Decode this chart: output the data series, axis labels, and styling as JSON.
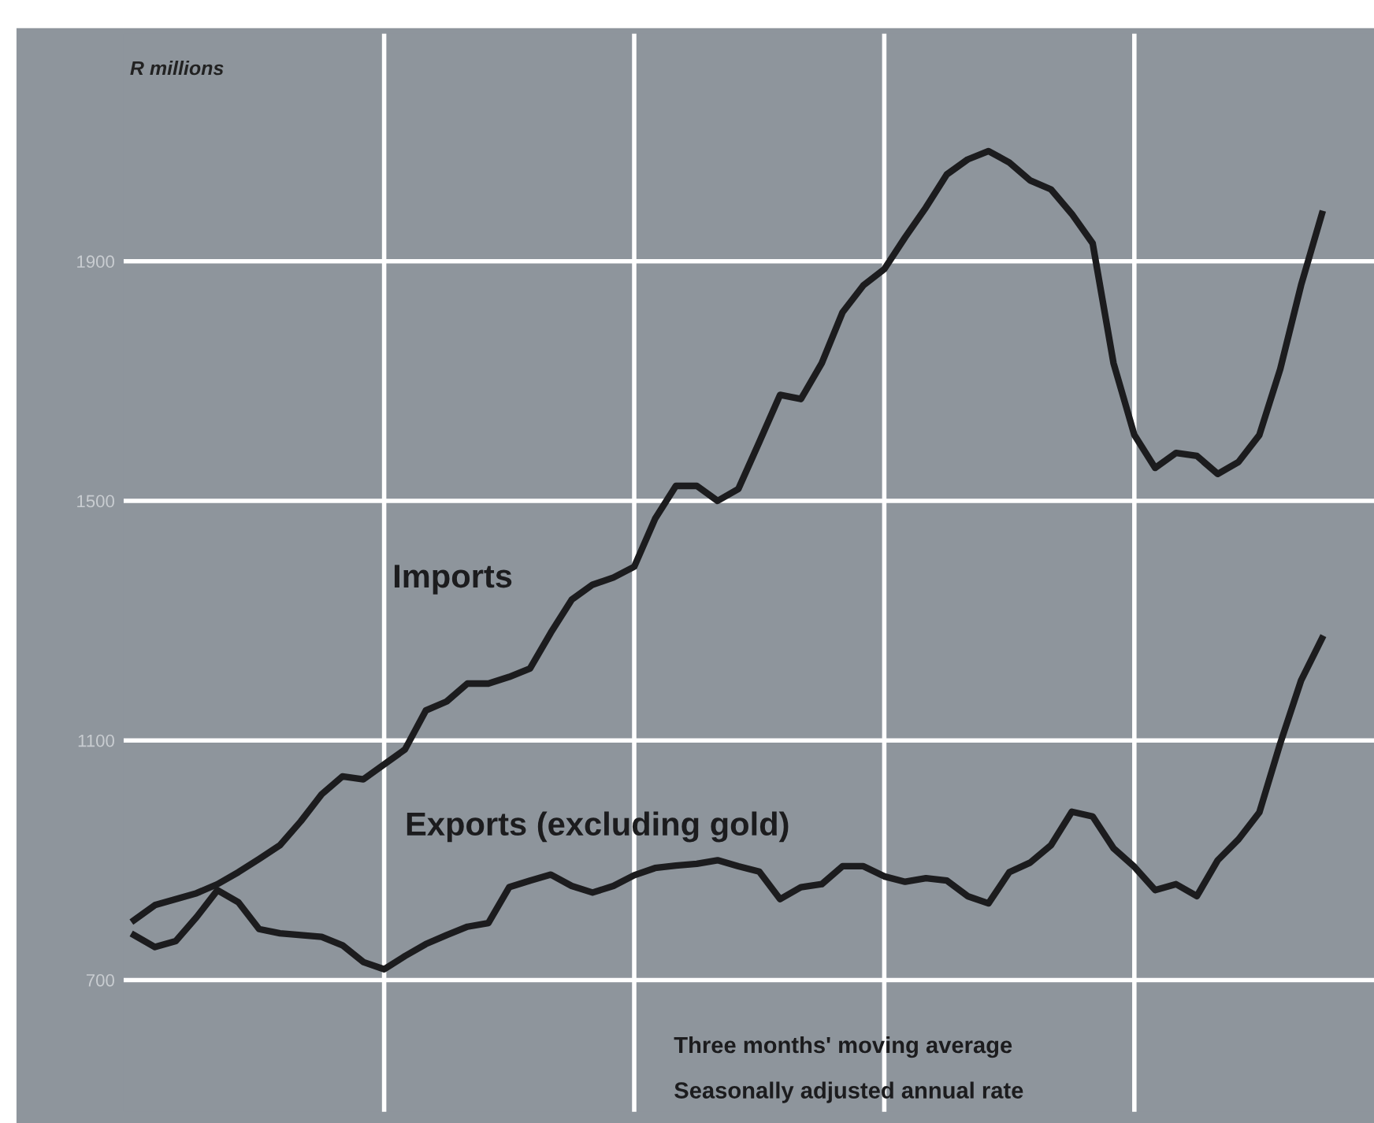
{
  "chart_data": {
    "type": "line",
    "ylabel": "R millions",
    "categories": [
      null,
      null,
      null,
      null,
      null,
      null,
      null,
      null,
      null,
      null,
      null,
      null,
      null,
      null,
      null,
      null,
      null,
      null,
      null,
      null,
      null,
      null,
      null,
      null,
      null,
      null,
      null,
      null,
      null,
      null,
      null,
      null,
      null,
      null,
      null,
      null,
      null,
      null,
      null,
      null,
      null,
      null,
      null,
      null,
      null,
      null,
      null,
      null,
      null,
      null,
      null,
      null,
      null,
      null,
      null,
      null,
      null,
      null
    ],
    "ylim": [
      480,
      2280
    ],
    "yticks": [
      700,
      1100,
      1500,
      1900
    ],
    "grid": true,
    "tick_labels": "y",
    "series": [
      {
        "name": "Imports",
        "color": "#1c1c1e",
        "values": [
          800,
          825,
          835,
          845,
          860,
          880,
          902,
          925,
          965,
          1010,
          1040,
          1035,
          1060,
          1085,
          1150,
          1165,
          1195,
          1195,
          1206,
          1220,
          1280,
          1335,
          1360,
          1372,
          1390,
          1470,
          1525,
          1525,
          1500,
          1520,
          1598,
          1677,
          1670,
          1730,
          1815,
          1860,
          1887,
          1940,
          1990,
          2045,
          2070,
          2084,
          2065,
          2035,
          2020,
          1979,
          1930,
          1730,
          1610,
          1555,
          1580,
          1575,
          1545,
          1565,
          1610,
          1720,
          1860,
          1979
        ]
      },
      {
        "name": "Exports (excluding gold)",
        "color": "#1c1c1e",
        "values": [
          775,
          755,
          765,
          805,
          850,
          830,
          785,
          778,
          775,
          772,
          758,
          730,
          718,
          740,
          760,
          775,
          789,
          795,
          855,
          866,
          876,
          857,
          846,
          857,
          875,
          887,
          891,
          894,
          900,
          890,
          881,
          835,
          855,
          860,
          890,
          890,
          873,
          864,
          870,
          866,
          840,
          828,
          880,
          896,
          925,
          981,
          973,
          920,
          889,
          850,
          860,
          840,
          900,
          935,
          980,
          1095,
          1200,
          1270
        ]
      }
    ],
    "annotations": [
      "Three months' moving average",
      "Seasonally adjusted annual rate"
    ]
  }
}
